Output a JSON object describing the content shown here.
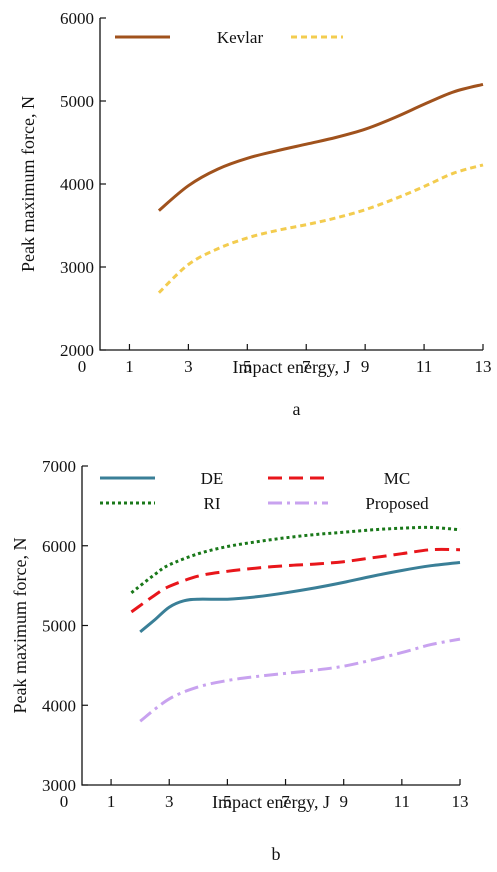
{
  "chart_data": [
    {
      "type": "line",
      "caption": "a",
      "xlabel": "Impact energy, J",
      "ylabel": "Peak maximum force, N",
      "xlim": [
        0,
        13
      ],
      "ylim": [
        2000,
        6000
      ],
      "xticks": [
        0,
        1,
        3,
        5,
        7,
        9,
        11,
        13
      ],
      "yticks": [
        2000,
        3000,
        4000,
        5000,
        6000
      ],
      "grid": false,
      "legend_position": "top",
      "series": [
        {
          "name": "Kevlar",
          "color": "#a0521d",
          "style": "solid",
          "x": [
            2,
            3,
            4,
            5,
            6,
            7,
            8,
            9,
            10,
            11,
            12,
            13
          ],
          "y": [
            3680,
            3980,
            4180,
            4310,
            4400,
            4480,
            4560,
            4660,
            4800,
            4960,
            5110,
            5200
          ]
        },
        {
          "name": "",
          "color": "#f3cc4f",
          "style": "dashed",
          "x": [
            2,
            3,
            4,
            5,
            6,
            7,
            8,
            9,
            10,
            11,
            12,
            13
          ],
          "y": [
            2690,
            3030,
            3220,
            3350,
            3440,
            3510,
            3590,
            3690,
            3820,
            3970,
            4130,
            4230
          ]
        }
      ]
    },
    {
      "type": "line",
      "caption": "b",
      "xlabel": "Impact energy, J",
      "ylabel": "Peak maximum force, N",
      "xlim": [
        0,
        13
      ],
      "ylim": [
        3000,
        7000
      ],
      "xticks": [
        0,
        1,
        3,
        5,
        7,
        9,
        11,
        13
      ],
      "yticks": [
        3000,
        4000,
        5000,
        6000,
        7000
      ],
      "grid": false,
      "legend_position": "top",
      "series": [
        {
          "name": "DE",
          "color": "#3a7f97",
          "style": "solid",
          "x": [
            2,
            2.5,
            3,
            3.5,
            4,
            5,
            6,
            7,
            8,
            9,
            10,
            11,
            12,
            13
          ],
          "y": [
            4920,
            5070,
            5230,
            5310,
            5330,
            5330,
            5360,
            5410,
            5470,
            5540,
            5620,
            5690,
            5750,
            5790
          ]
        },
        {
          "name": "MC",
          "color": "#e8161b",
          "style": "longdash",
          "x": [
            1.7,
            2.5,
            3,
            4,
            5,
            6,
            7,
            8,
            9,
            10,
            11,
            12,
            13
          ],
          "y": [
            5170,
            5380,
            5490,
            5620,
            5680,
            5720,
            5750,
            5770,
            5800,
            5850,
            5900,
            5950,
            5950
          ]
        },
        {
          "name": "RI",
          "color": "#197819",
          "style": "dotted",
          "x": [
            1.7,
            2.5,
            3,
            4,
            5,
            6,
            7,
            8,
            9,
            10,
            11,
            12,
            13
          ],
          "y": [
            5410,
            5640,
            5760,
            5900,
            5990,
            6050,
            6100,
            6140,
            6170,
            6200,
            6220,
            6230,
            6200
          ]
        },
        {
          "name": "Proposed",
          "color": "#c8a2ef",
          "style": "dashdot",
          "x": [
            2,
            3,
            4,
            5,
            6,
            7,
            8,
            9,
            10,
            11,
            12,
            13
          ],
          "y": [
            3800,
            4080,
            4230,
            4310,
            4360,
            4400,
            4440,
            4490,
            4570,
            4660,
            4760,
            4830
          ]
        }
      ]
    }
  ]
}
